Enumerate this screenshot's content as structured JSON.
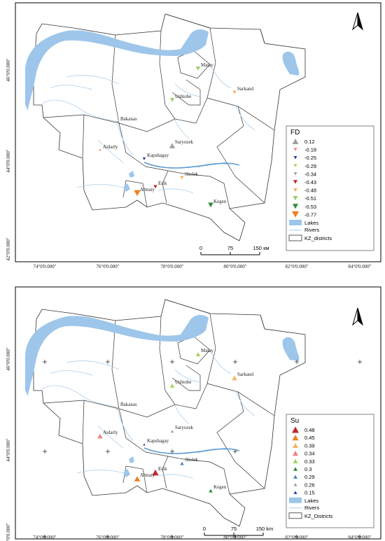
{
  "lat_labels": [
    "46°0'0.000\"",
    "44°0'0.000\"",
    "42°0'0.000\""
  ],
  "lon_labels": [
    "74°0'0.000\"",
    "76°0'0.000\"",
    "78°0'0.000\"",
    "80°0'0.000\"",
    "82°0'0.000\"",
    "84°0'0.000\""
  ],
  "places": [
    "Matay",
    "Ushtobe",
    "Sarkand",
    "Bakanas",
    "Saryozek",
    "Aidarly",
    "Kapshagay",
    "Shelek",
    "Esik",
    "Almaty",
    "Kegen"
  ],
  "maps": [
    {
      "legend_title": "FD",
      "scale": {
        "labels": [
          "0",
          "75",
          "150 км"
        ]
      },
      "legend_layers": [
        "Lakes",
        "Rivers",
        "KZ_districts"
      ],
      "classes": [
        {
          "value": "0.12",
          "color": "#a0a0a0",
          "shape": "up",
          "size": 9
        },
        {
          "value": "-0.18",
          "color": "#f08080",
          "shape": "down",
          "size": 4
        },
        {
          "value": "-0.25",
          "color": "#1f3f9f",
          "shape": "down",
          "size": 5
        },
        {
          "value": "-0.29",
          "color": "#a6d35b",
          "shape": "down",
          "size": 5
        },
        {
          "value": "-0.34",
          "color": "#a0a0a0",
          "shape": "down",
          "size": 5
        },
        {
          "value": "-0.43",
          "color": "#c1272d",
          "shape": "down",
          "size": 6
        },
        {
          "value": "-0.48",
          "color": "#f7b563",
          "shape": "down",
          "size": 6
        },
        {
          "value": "-0.51",
          "color": "#9dcc6a",
          "shape": "down",
          "size": 7
        },
        {
          "value": "-0.53",
          "color": "#2e8b3a",
          "shape": "down",
          "size": 8
        },
        {
          "value": "-0.77",
          "color": "#f07f1f",
          "shape": "down",
          "size": 10
        }
      ],
      "points": [
        {
          "name": "Matay",
          "class": 7
        },
        {
          "name": "Ushtobe",
          "class": 7
        },
        {
          "name": "Sarkand",
          "class": 6
        },
        {
          "name": "Bakanas",
          "class": 4
        },
        {
          "name": "Saryozek",
          "class": 0
        },
        {
          "name": "Aidarly",
          "class": 1
        },
        {
          "name": "Kapshagay",
          "class": 2
        },
        {
          "name": "Shelek",
          "class": 6
        },
        {
          "name": "Esik",
          "class": 5
        },
        {
          "name": "Almaty",
          "class": 9
        },
        {
          "name": "Kegen",
          "class": 8
        }
      ]
    },
    {
      "legend_title": "Su",
      "scale": {
        "labels": [
          "0",
          "75",
          "150 km"
        ]
      },
      "legend_layers": [
        "Lakes",
        "Rivers",
        "KZ_Districts"
      ],
      "classes": [
        {
          "value": "0.48",
          "color": "#c1272d",
          "shape": "up",
          "size": 10
        },
        {
          "value": "0.45",
          "color": "#f07f1f",
          "shape": "up",
          "size": 9
        },
        {
          "value": "0.39",
          "color": "#f7b563",
          "shape": "up",
          "size": 8
        },
        {
          "value": "0.34",
          "color": "#f08080",
          "shape": "up",
          "size": 8
        },
        {
          "value": "0.33",
          "color": "#a6d35b",
          "shape": "up",
          "size": 7
        },
        {
          "value": "0.3",
          "color": "#2e8b3a",
          "shape": "up",
          "size": 6
        },
        {
          "value": "0.29",
          "color": "#4f86c6",
          "shape": "up",
          "size": 6
        },
        {
          "value": "0.26",
          "color": "#a0a0a0",
          "shape": "up",
          "size": 5
        },
        {
          "value": "0.15",
          "color": "#1f3f9f",
          "shape": "up",
          "size": 4
        }
      ],
      "points": [
        {
          "name": "Matay",
          "class": 4
        },
        {
          "name": "Ushtobe",
          "class": 4
        },
        {
          "name": "Sarkand",
          "class": 2
        },
        {
          "name": "Bakanas",
          "class": 7
        },
        {
          "name": "Saryozek",
          "class": 7
        },
        {
          "name": "Aidarly",
          "class": 3
        },
        {
          "name": "Kapshagay",
          "class": 8
        },
        {
          "name": "Shelek",
          "class": 6
        },
        {
          "name": "Esik",
          "class": 0
        },
        {
          "name": "Almaty",
          "class": 1
        },
        {
          "name": "Kegen",
          "class": 5
        }
      ]
    }
  ]
}
